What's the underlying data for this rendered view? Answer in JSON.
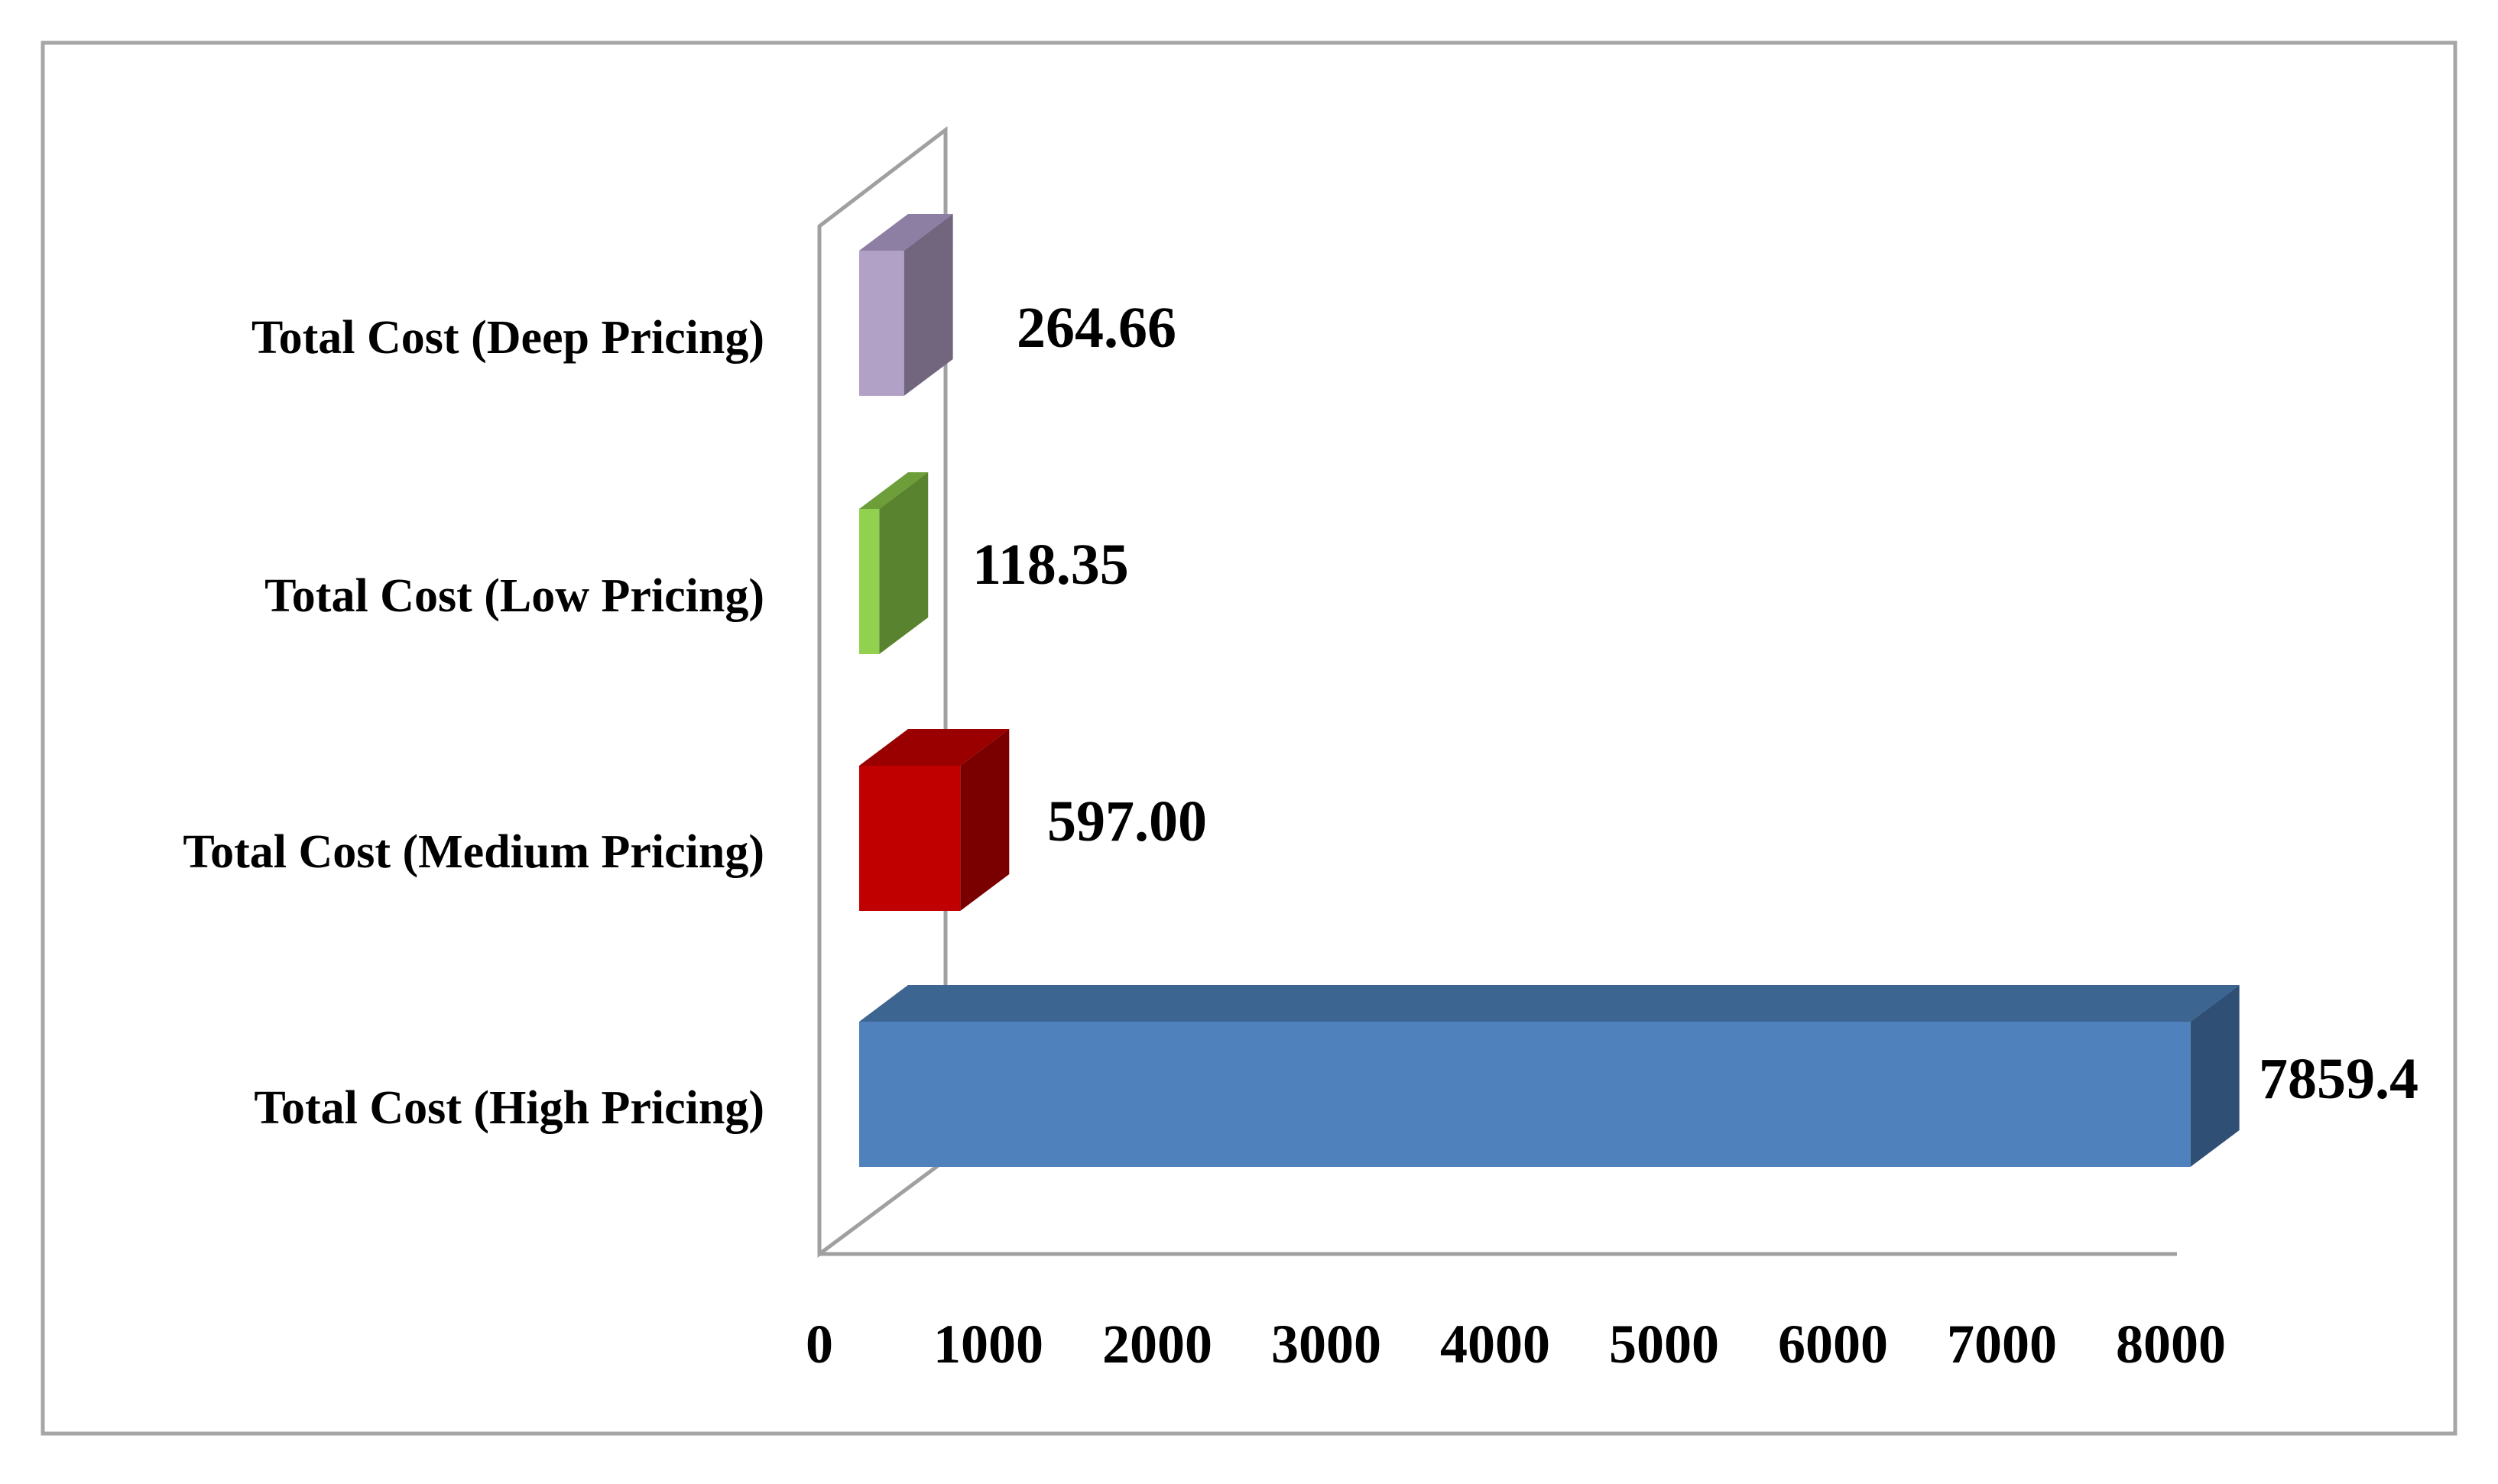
{
  "chart_data": {
    "type": "bar",
    "orientation": "horizontal",
    "style": "3d",
    "categories": [
      "Total Cost (High Pricing)",
      "Total Cost (Medium Pricing)",
      "Total Cost (Low Pricing)",
      "Total Cost (Deep Pricing)"
    ],
    "values": [
      7859.4,
      597.0,
      118.35,
      264.66
    ],
    "value_labels": [
      "7859.4",
      "597.00",
      "118.35",
      "264.66"
    ],
    "bar_colors": [
      {
        "front": "#4f81bd",
        "top": "#3d6591",
        "side": "#2f4f75"
      },
      {
        "front": "#c00000",
        "top": "#9a0000",
        "side": "#7a0000"
      },
      {
        "front": "#92d050",
        "top": "#6e9e3a",
        "side": "#5a8330"
      },
      {
        "front": "#b2a1c7",
        "top": "#8d7ea3",
        "side": "#72667f"
      }
    ],
    "xlim": [
      0,
      8000
    ],
    "xticks": [
      "0",
      "1000",
      "2000",
      "3000",
      "4000",
      "5000",
      "6000",
      "7000",
      "8000"
    ],
    "title": "",
    "xlabel": "",
    "ylabel": "",
    "grid": false,
    "legend": "none"
  }
}
